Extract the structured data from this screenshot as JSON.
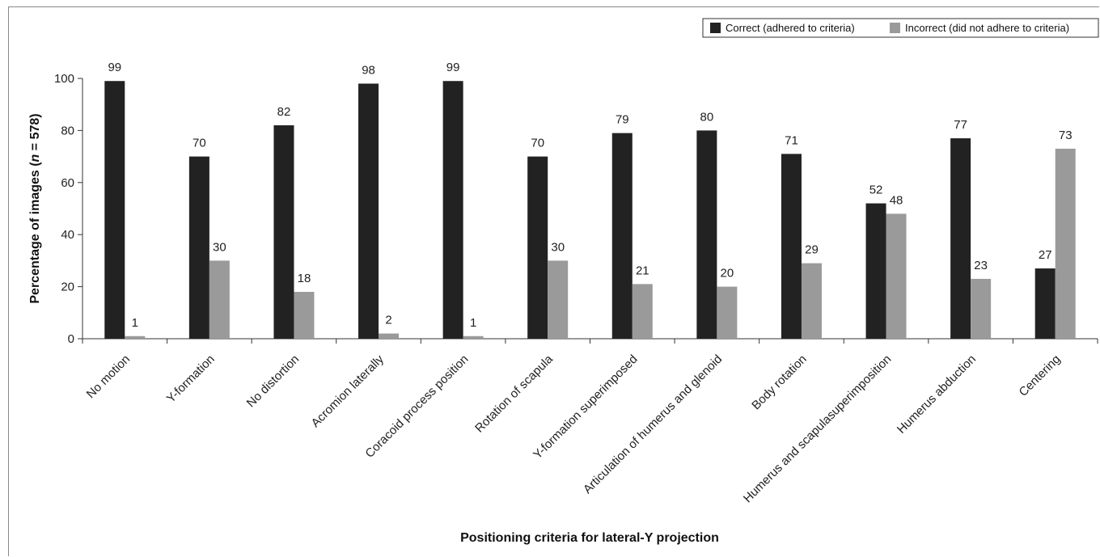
{
  "chart_data": {
    "type": "bar",
    "xlabel": "Positioning criteria for lateral-Y projection",
    "ylabel_prefix": "Percentage of images (",
    "ylabel_italic": "n",
    "ylabel_suffix": " = 578)",
    "ylim": [
      0,
      100
    ],
    "yticks": [
      0,
      20,
      40,
      60,
      80,
      100
    ],
    "grid": false,
    "legend_position": "top-right",
    "categories": [
      "No motion",
      "Y-formation",
      "No distortion",
      "Acromion laterally",
      "Coracoid process position",
      "Rotation of scapula",
      "Y-formation superimposed",
      "Articulation of humerus and glenoid",
      "Body rotation",
      "Humerus and scapulasuperimposition",
      "Humerus abduction",
      "Centering"
    ],
    "series": [
      {
        "name": "Correct (adhered to criteria)",
        "color": "#222222",
        "values": [
          99,
          70,
          82,
          98,
          99,
          70,
          79,
          80,
          71,
          52,
          77,
          27
        ]
      },
      {
        "name": "Incorrect (did not adhere to criteria)",
        "color": "#9a9a9a",
        "values": [
          1,
          30,
          18,
          2,
          1,
          30,
          21,
          20,
          29,
          48,
          23,
          73
        ]
      }
    ]
  }
}
